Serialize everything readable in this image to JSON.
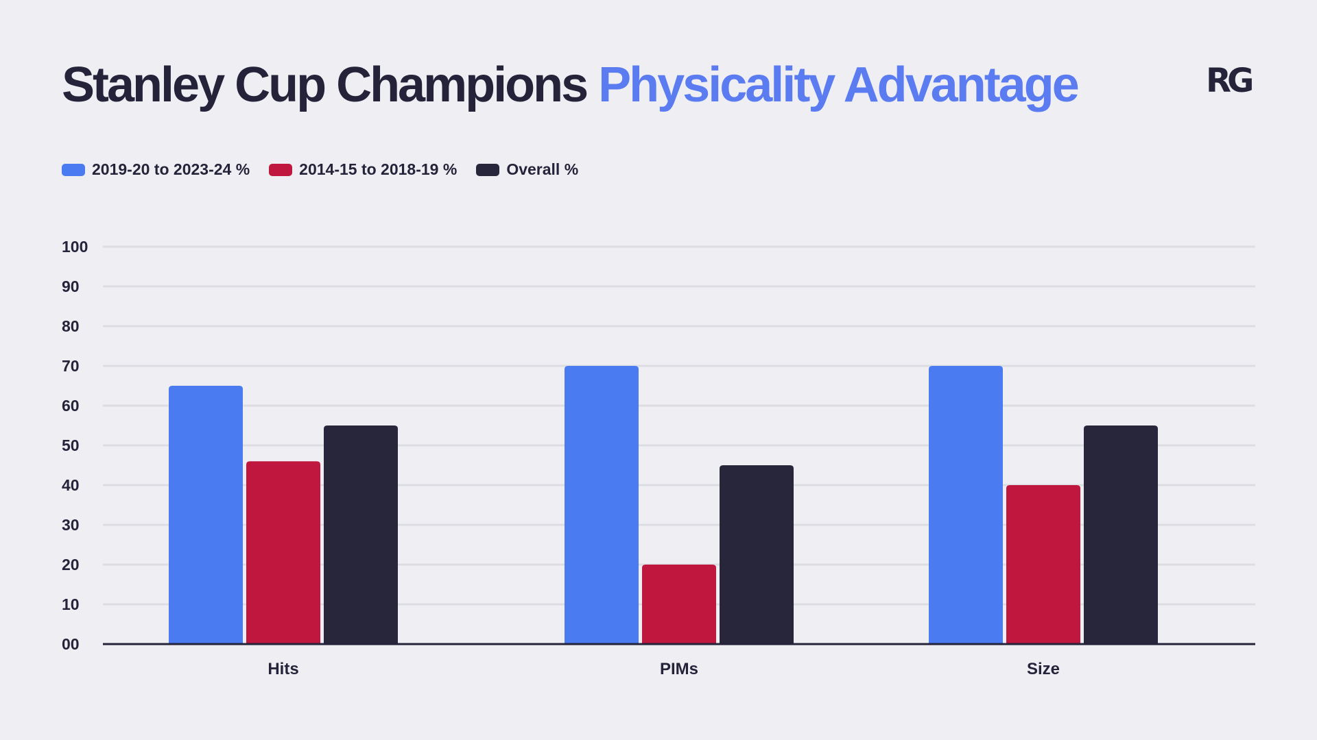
{
  "header": {
    "title_part1": "Stanley Cup Champions",
    "title_part2": "Physicality Advantage",
    "logo_text": "RG"
  },
  "colors": {
    "background": "#efeff3",
    "recent": "#4a7bf0",
    "earlier": "#c0173e",
    "overall": "#28263b",
    "accent_title": "#5b7cf0",
    "gridline": "#dcdce3",
    "axis": "#25233a"
  },
  "chart_data": {
    "type": "bar",
    "categories": [
      "Hits",
      "PIMs",
      "Size"
    ],
    "series": [
      {
        "name": "2019-20 to 2023-24 %",
        "values": [
          65,
          70,
          70
        ]
      },
      {
        "name": "2014-15 to 2018-19 %",
        "values": [
          46,
          20,
          40
        ]
      },
      {
        "name": "Overall %",
        "values": [
          55,
          45,
          55
        ]
      }
    ],
    "yticks": [
      "00",
      "10",
      "20",
      "30",
      "40",
      "50",
      "60",
      "70",
      "80",
      "90",
      "100"
    ],
    "ylim": [
      0,
      100
    ],
    "grid": true,
    "legend_position": "top-left",
    "title": "Stanley Cup Champions Physicality Advantage"
  }
}
